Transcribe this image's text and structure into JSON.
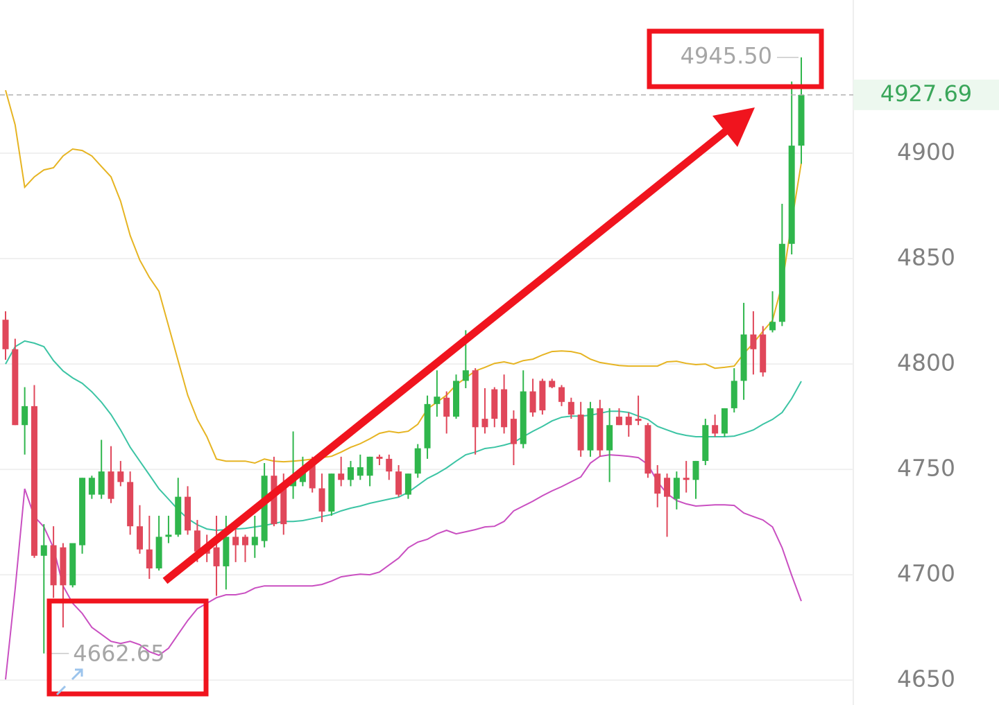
{
  "chart_data": {
    "type": "candlestick",
    "open": [
      4821,
      4807,
      4771,
      4780,
      4709,
      4714,
      4713,
      4695,
      4714,
      4738,
      4738,
      4749,
      4749,
      4744,
      4723,
      4712,
      4703,
      4718,
      4719,
      4737,
      4721,
      4713,
      4713,
      4704,
      4718,
      4718,
      4714,
      4716,
      4747,
      4742,
      4742,
      4744,
      4753,
      4741,
      4730,
      4748,
      4745,
      4747,
      4747,
      4756,
      4755,
      4749,
      4738,
      4748,
      4760,
      4781,
      4784,
      4775,
      4792,
      4797,
      4774,
      4788,
      4788,
      4774,
      4762,
      4787,
      4792,
      4792,
      4789,
      4782,
      4776,
      4759,
      4779,
      4759,
      4775,
      4775,
      4774,
      4771,
      4748,
      4746,
      4736,
      4746,
      4745,
      4754,
      4771,
      4767,
      4779,
      4792,
      4814,
      4814,
      4816,
      4820,
      4857,
      4903.6
    ],
    "high": [
      4825,
      4812,
      4789,
      4790,
      4724,
      4723,
      4715,
      4715,
      4746,
      4747,
      4764,
      4761,
      4754,
      4749,
      4733,
      4728,
      4728,
      4728,
      4746,
      4742,
      4726,
      4719,
      4728,
      4728,
      4723,
      4719,
      4728,
      4753,
      4756,
      4748,
      4768,
      4756,
      4756,
      4748,
      4748,
      4756,
      4754,
      4757,
      4756,
      4757,
      4757,
      4752,
      4748,
      4762,
      4785,
      4797,
      4787,
      4795,
      4816,
      4798,
      4788.5,
      4789,
      4795,
      4778,
      4797,
      4793,
      4793,
      4793,
      4790,
      4784,
      4782,
      4782,
      4783,
      4779,
      4779,
      4777,
      4785,
      4772,
      4752,
      4748,
      4749,
      4754,
      4754,
      4774,
      4776,
      4779,
      4798,
      4829,
      4825,
      4818,
      4834.5,
      4876,
      4934,
      4945.5
    ],
    "low": [
      4802,
      4771,
      4757,
      4708,
      4662.65,
      4689,
      4675,
      4694,
      4710,
      4736,
      4736,
      4734,
      4742,
      4719,
      4710,
      4698,
      4702,
      4715,
      4718,
      4719,
      4706,
      4706,
      4690,
      4693,
      4706,
      4706,
      4708,
      4713,
      4723,
      4719,
      4736,
      4742,
      4739,
      4725,
      4728,
      4742,
      4742,
      4745,
      4742,
      4752,
      4745,
      4737,
      4736,
      4746,
      4755,
      4775,
      4767,
      4774,
      4788.5,
      4757,
      4767,
      4770,
      4767,
      4752,
      4760,
      4775,
      4776,
      4788.5,
      4780,
      4774,
      4756,
      4756,
      4756,
      4744,
      4771,
      4765.5,
      4771,
      4746,
      4732,
      4718,
      4731,
      4739,
      4736,
      4752,
      4765.5,
      4765.5,
      4777,
      4783,
      4795,
      4794,
      4815,
      4818,
      4852,
      4895
    ],
    "close": [
      4807,
      4771,
      4780,
      4709,
      4714,
      4695,
      4695,
      4715,
      4746,
      4746,
      4749,
      4736,
      4744,
      4723,
      4712,
      4703,
      4718,
      4719,
      4737,
      4721,
      4711,
      4710,
      4704,
      4718,
      4714,
      4714,
      4718,
      4747,
      4724,
      4724,
      4746,
      4750,
      4741,
      4730,
      4748,
      4745,
      4751,
      4751,
      4756,
      4755,
      4749,
      4738,
      4748,
      4760,
      4781,
      4784.5,
      4775,
      4792,
      4797,
      4770,
      4770,
      4774,
      4770,
      4762,
      4787,
      4777,
      4778,
      4789,
      4782,
      4776,
      4759,
      4779,
      4759,
      4771,
      4771,
      4771,
      4773,
      4748,
      4738.5,
      4737,
      4746,
      4745,
      4754,
      4771,
      4767,
      4779,
      4792,
      4814,
      4807,
      4796,
      4820,
      4857,
      4903.6,
      4927.69
    ],
    "up_color": "#2fb64c",
    "down_color": "#e0475a",
    "lines": [
      {
        "color": "#e6b422",
        "values": [
          4929.9,
          4913.5,
          4883.9,
          4888.8,
          4892.1,
          4893.1,
          4898.7,
          4902,
          4901.3,
          4898.7,
          4893.7,
          4888.8,
          4877.3,
          4860.9,
          4849.3,
          4841.1,
          4834.5,
          4818.1,
          4801.6,
          4785.2,
          4773.7,
          4765.5,
          4754.9,
          4753.9,
          4753.9,
          4753.9,
          4753,
          4754.9,
          4753.9,
          4753.6,
          4753.9,
          4754.3,
          4754.9,
          4755.6,
          4756.2,
          4758.2,
          4760.5,
          4762.2,
          4764.5,
          4767.1,
          4768.1,
          4767.4,
          4768.1,
          4771.4,
          4778.6,
          4781.9,
          4785.2,
          4790.1,
          4793.4,
          4796.7,
          4798.4,
          4800.3,
          4801,
          4800,
          4801.6,
          4802.3,
          4804.3,
          4805.9,
          4806.2,
          4805.9,
          4804.9,
          4802.3,
          4800.7,
          4800,
          4799.3,
          4799,
          4799,
          4799,
          4799,
          4801,
          4801.3,
          4800.3,
          4799.7,
          4800,
          4798,
          4798.4,
          4799,
          4804.9,
          4809.9,
          4815.5,
          4820.7,
          4837.8,
          4867.4,
          4895.4
        ]
      },
      {
        "color": "#3cc4a4",
        "values": [
          4800,
          4808.2,
          4810.9,
          4809.9,
          4808.2,
          4801.6,
          4796.7,
          4793.4,
          4790.8,
          4786.8,
          4781.9,
          4776,
          4768.7,
          4760.5,
          4753.9,
          4747.4,
          4740.8,
          4735.9,
          4730.9,
          4726.6,
          4723.7,
          4721.7,
          4721.1,
          4721.4,
          4721.7,
          4722,
          4722.7,
          4723.4,
          4724.3,
          4725.3,
          4725.3,
          4725.7,
          4726.6,
          4727.6,
          4728.6,
          4730.3,
          4731.6,
          4732.6,
          4733.9,
          4734.9,
          4735.9,
          4736.8,
          4739.1,
          4742.4,
          4745.7,
          4748,
          4750.7,
          4753.9,
          4756.9,
          4758.2,
          4759.9,
          4760.5,
          4761.5,
          4762.8,
          4765.5,
          4768.1,
          4770.4,
          4773,
          4774.7,
          4775.3,
          4775.3,
          4775.7,
          4776.6,
          4777.6,
          4777.6,
          4777,
          4775.3,
          4773.7,
          4770.4,
          4768.7,
          4767.1,
          4766.1,
          4765.5,
          4765.5,
          4765.5,
          4765.5,
          4765.8,
          4767.1,
          4768.7,
          4771.4,
          4773.7,
          4777,
          4783.6,
          4791.8
        ]
      },
      {
        "color": "#c94fc1",
        "values": [
          4650.3,
          4693.1,
          4740.8,
          4727.6,
          4722.7,
          4712.8,
          4694.7,
          4686.5,
          4681.6,
          4675,
          4671.7,
          4668.4,
          4667.4,
          4668.4,
          4666.8,
          4663.5,
          4661.8,
          4665.1,
          4671.7,
          4678.3,
          4683.9,
          4686.5,
          4689.1,
          4690.5,
          4690.5,
          4691.4,
          4693.7,
          4694.7,
          4694.7,
          4694.7,
          4694.7,
          4694.7,
          4694.7,
          4695.4,
          4697,
          4699,
          4699.7,
          4700.3,
          4700,
          4701.3,
          4704.6,
          4707.9,
          4712.8,
          4715.5,
          4716.8,
          4719.4,
          4721.1,
          4719.4,
          4720.4,
          4721.4,
          4722.7,
          4723,
          4725.3,
          4730.3,
          4732.6,
          4734.9,
          4737.5,
          4739.8,
          4741.8,
          4744.1,
          4746.4,
          4753,
          4756.2,
          4756.9,
          4756.6,
          4756.2,
          4755.6,
          4752.3,
          4744.1,
          4738.5,
          4735.2,
          4733.6,
          4732.6,
          4732.9,
          4733.2,
          4733.2,
          4732.9,
          4729.3,
          4727.6,
          4726,
          4722.7,
          4712.8,
          4699.7,
          4687.5
        ]
      }
    ],
    "ylim": [
      4638.2,
      4972.7
    ],
    "yticks": [
      4650,
      4700,
      4750,
      4800,
      4850,
      4900
    ],
    "grid": true,
    "last_price": 4927.69,
    "max_marker": {
      "value": 4945.5,
      "label": "4945.50"
    },
    "min_marker": 4662.65
  }
}
